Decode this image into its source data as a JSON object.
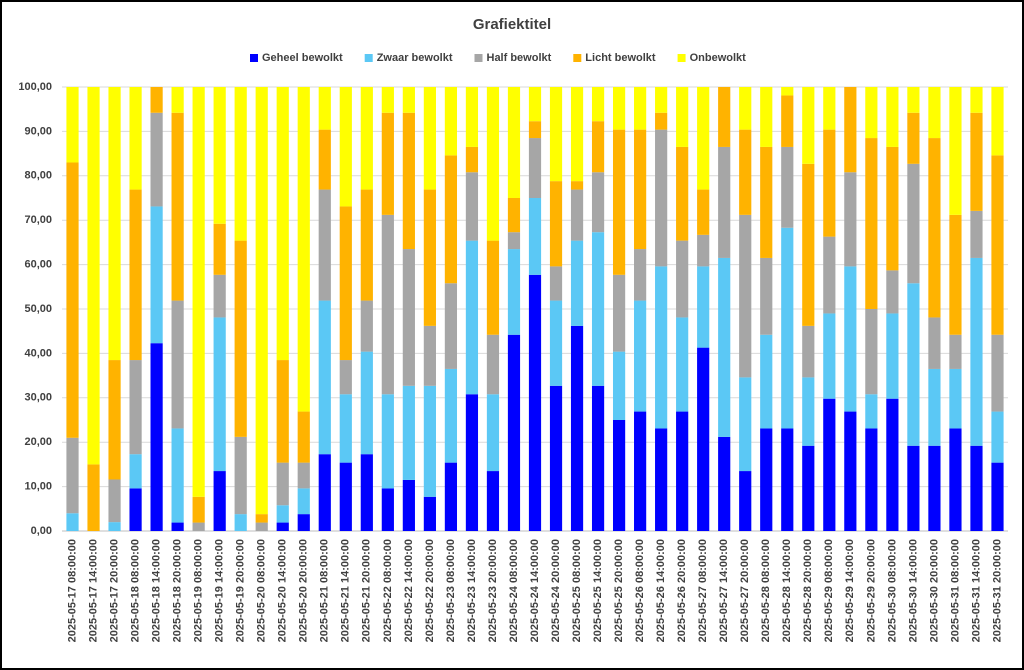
{
  "chart_data": {
    "type": "stacked_bar",
    "title": "Grafiektitel",
    "categories": [
      "2025-05-17 08:00:00",
      "2025-05-17 14:00:00",
      "2025-05-17 20:00:00",
      "2025-05-18 08:00:00",
      "2025-05-18 14:00:00",
      "2025-05-18 20:00:00",
      "2025-05-19 08:00:00",
      "2025-05-19 14:00:00",
      "2025-05-19 20:00:00",
      "2025-05-20 08:00:00",
      "2025-05-20 14:00:00",
      "2025-05-20 20:00:00",
      "2025-05-21 08:00:00",
      "2025-05-21 14:00:00",
      "2025-05-21 20:00:00",
      "2025-05-22 08:00:00",
      "2025-05-22 14:00:00",
      "2025-05-22 20:00:00",
      "2025-05-23 08:00:00",
      "2025-05-23 14:00:00",
      "2025-05-23 20:00:00",
      "2025-05-24 08:00:00",
      "2025-05-24 14:00:00",
      "2025-05-24 20:00:00",
      "2025-05-25 08:00:00",
      "2025-05-25 14:00:00",
      "2025-05-25 20:00:00",
      "2025-05-26 08:00:00",
      "2025-05-26 14:00:00",
      "2025-05-26 20:00:00",
      "2025-05-27 08:00:00",
      "2025-05-27 14:00:00",
      "2025-05-27 20:00:00",
      "2025-05-28 08:00:00",
      "2025-05-28 14:00:00",
      "2025-05-28 20:00:00",
      "2025-05-29 08:00:00",
      "2025-05-29 14:00:00",
      "2025-05-29 20:00:00",
      "2025-05-30 08:00:00",
      "2025-05-30 14:00:00",
      "2025-05-30 20:00:00",
      "2025-05-31 08:00:00",
      "2025-05-31 14:00:00",
      "2025-05-31 20:00:00"
    ],
    "series": [
      {
        "name": "Geheel bewolkt",
        "color": "#0000ff",
        "values": [
          0,
          0,
          0,
          9.6,
          42.3,
          1.9,
          0,
          13.5,
          0,
          0,
          1.9,
          3.8,
          17.3,
          15.4,
          17.3,
          9.6,
          11.5,
          7.7,
          15.4,
          30.8,
          13.5,
          44.2,
          57.7,
          32.7,
          46.2,
          32.7,
          25,
          26.9,
          23.1,
          26.9,
          41.3,
          21.2,
          13.5,
          23.1,
          23.1,
          19.2,
          29.8,
          26.9,
          23.1,
          29.8,
          19.2,
          19.2,
          23.1,
          19.2,
          15.4
        ]
      },
      {
        "name": "Zwaar bewolkt",
        "color": "#5bc8f5",
        "values": [
          4,
          0,
          2,
          7.7,
          30.8,
          21.2,
          0,
          34.6,
          3.8,
          0,
          3.9,
          5.8,
          34.6,
          15.4,
          23.1,
          21.2,
          21.2,
          25,
          21.1,
          34.6,
          17.3,
          19.3,
          17.3,
          19.2,
          19.2,
          34.6,
          15.4,
          25,
          36.5,
          21.2,
          18.3,
          40.3,
          21.1,
          21.1,
          45.2,
          15.4,
          19.2,
          32.7,
          7.7,
          19.2,
          36.6,
          17.3,
          13.4,
          42.3,
          11.5
        ]
      },
      {
        "name": "Half bewolkt",
        "color": "#a6a6a6",
        "values": [
          17,
          0,
          9.6,
          21.2,
          21.1,
          28.8,
          1.9,
          9.6,
          17.4,
          1.9,
          9.6,
          5.8,
          25,
          7.7,
          11.5,
          40.4,
          30.8,
          13.5,
          19.3,
          15.4,
          13.4,
          3.8,
          13.5,
          7.7,
          11.5,
          13.5,
          17.3,
          11.6,
          30.8,
          17.3,
          7.1,
          25,
          36.6,
          17.3,
          18.2,
          11.6,
          17.3,
          21.2,
          19.2,
          9.7,
          26.9,
          11.6,
          7.7,
          10.6,
          17.3
        ]
      },
      {
        "name": "Licht bewolkt",
        "color": "#ffb300",
        "values": [
          62,
          15,
          26.9,
          38.4,
          5.8,
          42.3,
          5.8,
          11.5,
          44.2,
          1.9,
          23.1,
          11.5,
          13.5,
          34.6,
          25,
          23,
          30.7,
          30.7,
          28.8,
          5.7,
          21.2,
          7.7,
          3.8,
          19.2,
          1.9,
          11.5,
          32.7,
          26.9,
          3.8,
          21.1,
          10.2,
          13.5,
          19.2,
          25,
          11.6,
          36.5,
          24.1,
          19.2,
          38.5,
          27.8,
          11.5,
          40.4,
          27,
          22.1,
          40.4
        ]
      },
      {
        "name": "Onbewolkt",
        "color": "#ffff00",
        "values": [
          17,
          85,
          61.5,
          23.1,
          0,
          5.8,
          92.3,
          30.8,
          34.6,
          96.2,
          61.5,
          73.1,
          9.6,
          26.9,
          23.1,
          5.8,
          5.8,
          23.1,
          15.4,
          13.5,
          34.6,
          25,
          7.7,
          21.2,
          21.2,
          7.7,
          9.6,
          9.6,
          5.8,
          13.5,
          23.1,
          0,
          9.6,
          13.5,
          1.9,
          17.3,
          9.6,
          0,
          11.5,
          13.5,
          5.8,
          11.5,
          28.8,
          5.8,
          15.4
        ]
      }
    ],
    "ylim": [
      0,
      100
    ],
    "yticks": [
      {
        "value": 0,
        "label": "0,00"
      },
      {
        "value": 10,
        "label": "10,00"
      },
      {
        "value": 20,
        "label": "20,00"
      },
      {
        "value": 30,
        "label": "30,00"
      },
      {
        "value": 40,
        "label": "40,00"
      },
      {
        "value": 50,
        "label": "50,00"
      },
      {
        "value": 60,
        "label": "60,00"
      },
      {
        "value": 70,
        "label": "70,00"
      },
      {
        "value": 80,
        "label": "80,00"
      },
      {
        "value": 90,
        "label": "90,00"
      },
      {
        "value": 100,
        "label": "100,00"
      }
    ],
    "grid": true,
    "legend": "top"
  }
}
